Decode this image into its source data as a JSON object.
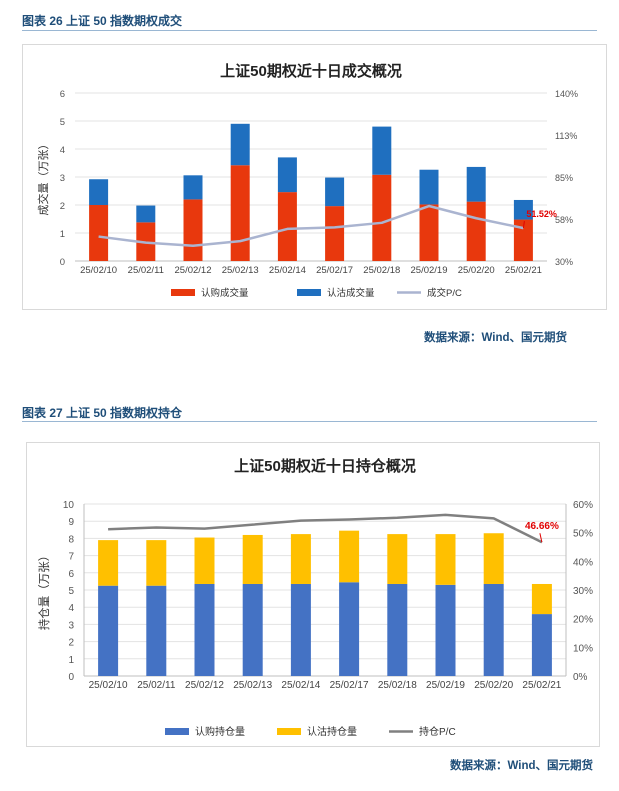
{
  "figure1": {
    "caption": "图表 26  上证 50 指数期权成交",
    "source": "数据来源：Wind、国元期货"
  },
  "figure2": {
    "caption": "图表 27  上证 50 指数期权持仓",
    "source": "数据来源：Wind、国元期货"
  },
  "colors": {
    "call": "#e8380d",
    "put_volume": "#1f6fbf",
    "pc_volume": "#aab4d0",
    "call_oi": "#4472c4",
    "put_oi": "#ffc000",
    "pc_oi": "#808080",
    "annotation": "#e00000"
  },
  "chart_data": [
    {
      "type": "bar",
      "stacked": true,
      "title": "上证50期权近十日成交概况",
      "ylabel": "成交量（万张）",
      "y2label": "",
      "categories": [
        "25/02/10",
        "25/02/11",
        "25/02/12",
        "25/02/13",
        "25/02/14",
        "25/02/17",
        "25/02/18",
        "25/02/19",
        "25/02/20",
        "25/02/21"
      ],
      "ylim": [
        0,
        6
      ],
      "yticks": [
        "0",
        "1",
        "2",
        "3",
        "4",
        "5",
        "6"
      ],
      "y2lim": [
        30,
        140
      ],
      "y2ticks": [
        "30%",
        "58%",
        "85%",
        "113%",
        "140%"
      ],
      "series": [
        {
          "name": "认购成交量",
          "kind": "bar",
          "axis": "left",
          "values": [
            2.0,
            1.38,
            2.2,
            3.42,
            2.46,
            1.96,
            3.08,
            2.02,
            2.12,
            1.48
          ]
        },
        {
          "name": "认沽成交量",
          "kind": "bar",
          "axis": "left",
          "values": [
            0.92,
            0.6,
            0.86,
            1.48,
            1.24,
            1.02,
            1.72,
            1.24,
            1.24,
            0.7
          ]
        },
        {
          "name": "成交P/C",
          "kind": "line",
          "axis": "right",
          "values": [
            46,
            42,
            40,
            43,
            51,
            52,
            55,
            66,
            58,
            51.52
          ]
        }
      ],
      "annotation": "51.52%",
      "grid": true,
      "legend": "bottom"
    },
    {
      "type": "bar",
      "stacked": true,
      "title": "上证50期权近十日持仓概况",
      "ylabel": "持仓量（万张）",
      "y2label": "",
      "categories": [
        "25/02/10",
        "25/02/11",
        "25/02/12",
        "25/02/13",
        "25/02/14",
        "25/02/17",
        "25/02/18",
        "25/02/19",
        "25/02/20",
        "25/02/21"
      ],
      "ylim": [
        0,
        10
      ],
      "yticks": [
        "0",
        "1",
        "2",
        "3",
        "4",
        "5",
        "6",
        "7",
        "8",
        "9",
        "10"
      ],
      "y2lim": [
        0,
        60
      ],
      "y2ticks": [
        "0%",
        "10%",
        "20%",
        "30%",
        "40%",
        "50%",
        "60%"
      ],
      "series": [
        {
          "name": "认购持仓量",
          "kind": "bar",
          "axis": "left",
          "values": [
            5.25,
            5.25,
            5.35,
            5.35,
            5.35,
            5.45,
            5.35,
            5.3,
            5.35,
            3.6
          ]
        },
        {
          "name": "认沽持仓量",
          "kind": "bar",
          "axis": "left",
          "values": [
            2.65,
            2.65,
            2.7,
            2.85,
            2.9,
            3.0,
            2.9,
            2.95,
            2.95,
            1.75
          ]
        },
        {
          "name": "持仓P/C",
          "kind": "line",
          "axis": "right",
          "values": [
            51.2,
            51.8,
            51.4,
            52.8,
            54.2,
            54.6,
            55.2,
            56.2,
            55.0,
            46.66
          ]
        }
      ],
      "annotation": "46.66%",
      "grid": true,
      "legend": "bottom"
    }
  ]
}
